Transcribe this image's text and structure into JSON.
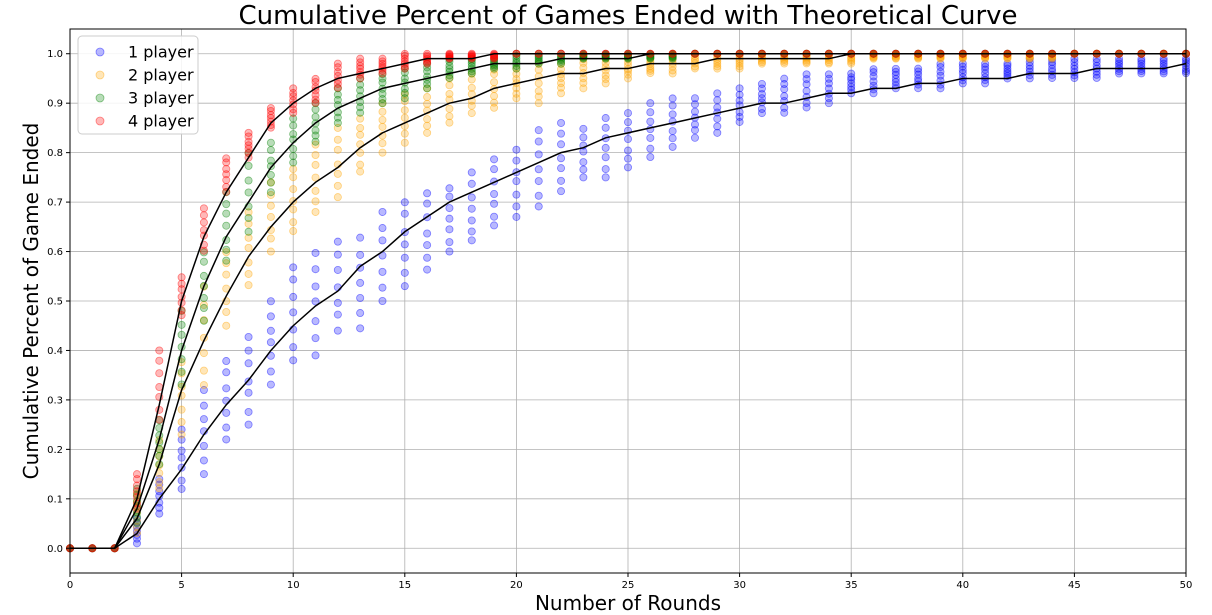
{
  "chart_data": {
    "type": "scatter",
    "title": "Cumulative Percent of Games Ended with Theoretical Curve",
    "xlabel": "Number of Rounds",
    "ylabel": "Cumulative Percent of Game Ended",
    "xlim": [
      0,
      50
    ],
    "ylim": [
      -0.05,
      1.05
    ],
    "xticks": [
      0,
      5,
      10,
      15,
      20,
      25,
      30,
      35,
      40,
      45,
      50
    ],
    "yticks": [
      0.0,
      0.1,
      0.2,
      0.3,
      0.4,
      0.5,
      0.6,
      0.7,
      0.8,
      0.9,
      1.0
    ],
    "grid": true,
    "legend_position": "top-left",
    "series": [
      {
        "name": "1 player",
        "color": "#0000ff",
        "x": [
          0,
          1,
          2,
          3,
          4,
          5,
          6,
          7,
          8,
          9,
          10,
          11,
          12,
          13,
          14,
          15,
          16,
          17,
          18,
          19,
          20,
          21,
          22,
          23,
          24,
          25,
          26,
          27,
          28,
          29,
          30,
          31,
          32,
          33,
          34,
          35,
          36,
          37,
          38,
          39,
          40,
          41,
          42,
          43,
          44,
          45,
          46,
          47,
          48,
          49,
          50
        ],
        "low": [
          0,
          0,
          0,
          0.01,
          0.07,
          0.12,
          0.15,
          0.22,
          0.25,
          0.33,
          0.38,
          0.39,
          0.44,
          0.44,
          0.5,
          0.53,
          0.56,
          0.6,
          0.62,
          0.65,
          0.67,
          0.69,
          0.72,
          0.75,
          0.75,
          0.77,
          0.79,
          0.81,
          0.83,
          0.84,
          0.86,
          0.88,
          0.88,
          0.89,
          0.9,
          0.92,
          0.92,
          0.93,
          0.93,
          0.93,
          0.94,
          0.94,
          0.95,
          0.95,
          0.95,
          0.95,
          0.95,
          0.96,
          0.96,
          0.96,
          0.96
        ],
        "high": [
          0,
          0,
          0,
          0.06,
          0.14,
          0.24,
          0.32,
          0.38,
          0.43,
          0.5,
          0.57,
          0.6,
          0.62,
          0.63,
          0.68,
          0.7,
          0.72,
          0.73,
          0.76,
          0.79,
          0.81,
          0.85,
          0.86,
          0.85,
          0.87,
          0.88,
          0.9,
          0.91,
          0.91,
          0.92,
          0.93,
          0.94,
          0.95,
          0.96,
          0.96,
          0.96,
          0.97,
          0.97,
          0.97,
          0.98,
          0.98,
          0.98,
          0.98,
          0.99,
          0.99,
          0.99,
          0.99,
          0.99,
          0.99,
          0.99,
          0.99
        ]
      },
      {
        "name": "2 player",
        "color": "#ffa500",
        "x": [
          0,
          1,
          2,
          3,
          4,
          5,
          6,
          7,
          8,
          9,
          10,
          11,
          12,
          13,
          14,
          15,
          16,
          17,
          18,
          19,
          20,
          21,
          22,
          23,
          24,
          25,
          26,
          27,
          28,
          29,
          30,
          31,
          32,
          33,
          34,
          35,
          36,
          37,
          38,
          39,
          40,
          41,
          42,
          43,
          44,
          45,
          46,
          47,
          48,
          49,
          50
        ],
        "low": [
          0,
          0,
          0,
          0.03,
          0.12,
          0.23,
          0.33,
          0.45,
          0.53,
          0.6,
          0.64,
          0.68,
          0.71,
          0.76,
          0.8,
          0.82,
          0.84,
          0.86,
          0.88,
          0.89,
          0.91,
          0.9,
          0.92,
          0.93,
          0.94,
          0.95,
          0.96,
          0.96,
          0.97,
          0.97,
          0.97,
          0.98,
          0.98,
          0.98,
          0.98,
          0.98,
          0.99,
          0.99,
          0.99,
          0.99,
          0.99,
          0.99,
          0.99,
          0.99,
          0.99,
          1.0,
          1.0,
          1.0,
          1.0,
          1.0,
          1.0
        ],
        "high": [
          0,
          0,
          0,
          0.11,
          0.22,
          0.38,
          0.53,
          0.6,
          0.68,
          0.74,
          0.77,
          0.82,
          0.85,
          0.87,
          0.9,
          0.92,
          0.93,
          0.95,
          0.96,
          0.97,
          0.97,
          0.98,
          0.98,
          0.99,
          0.99,
          0.99,
          0.99,
          1.0,
          1.0,
          1.0,
          1.0,
          1.0,
          1.0,
          1.0,
          1.0,
          1.0,
          1.0,
          1.0,
          1.0,
          1.0,
          1.0,
          1.0,
          1.0,
          1.0,
          1.0,
          1.0,
          1.0,
          1.0,
          1.0,
          1.0,
          1.0
        ]
      },
      {
        "name": "3 player",
        "color": "#008000",
        "x": [
          0,
          1,
          2,
          3,
          4,
          5,
          6,
          7,
          8,
          9,
          10,
          11,
          12,
          13,
          14,
          15,
          16,
          17,
          18,
          19,
          20,
          21,
          22,
          23,
          24,
          25,
          26,
          27,
          28,
          29,
          30,
          31,
          32,
          33,
          34,
          35,
          36,
          37,
          38,
          39,
          40,
          41,
          42,
          43,
          44,
          45,
          46,
          47,
          48,
          49,
          50
        ],
        "low": [
          0,
          0,
          0,
          0.05,
          0.17,
          0.33,
          0.46,
          0.58,
          0.64,
          0.72,
          0.78,
          0.82,
          0.86,
          0.88,
          0.9,
          0.91,
          0.93,
          0.95,
          0.96,
          0.97,
          0.97,
          0.98,
          0.98,
          0.99,
          0.99,
          0.99,
          0.99,
          0.99,
          1.0,
          1.0,
          1.0,
          1.0,
          1.0,
          1.0,
          1.0,
          1.0,
          1.0,
          1.0,
          1.0,
          1.0,
          1.0,
          1.0,
          1.0,
          1.0,
          1.0,
          1.0,
          1.0,
          1.0,
          1.0,
          1.0,
          1.0
        ],
        "high": [
          0,
          0,
          0,
          0.12,
          0.26,
          0.48,
          0.6,
          0.72,
          0.8,
          0.82,
          0.87,
          0.9,
          0.93,
          0.95,
          0.96,
          0.97,
          0.98,
          0.99,
          0.99,
          0.99,
          1.0,
          1.0,
          1.0,
          1.0,
          1.0,
          1.0,
          1.0,
          1.0,
          1.0,
          1.0,
          1.0,
          1.0,
          1.0,
          1.0,
          1.0,
          1.0,
          1.0,
          1.0,
          1.0,
          1.0,
          1.0,
          1.0,
          1.0,
          1.0,
          1.0,
          1.0,
          1.0,
          1.0,
          1.0,
          1.0,
          1.0
        ]
      },
      {
        "name": "4 player",
        "color": "#ff0000",
        "x": [
          0,
          1,
          2,
          3,
          4,
          5,
          6,
          7,
          8,
          9,
          10,
          11,
          12,
          13,
          14,
          15,
          16,
          17,
          18,
          19,
          20,
          21,
          22,
          23,
          24,
          25,
          26,
          27,
          28,
          29,
          30,
          31,
          32,
          33,
          34,
          35,
          36,
          37,
          38,
          39,
          40,
          41,
          42,
          43,
          44,
          45,
          46,
          47,
          48,
          49,
          50
        ],
        "low": [
          0,
          0,
          0,
          0.08,
          0.26,
          0.47,
          0.6,
          0.72,
          0.79,
          0.85,
          0.88,
          0.9,
          0.93,
          0.95,
          0.96,
          0.97,
          0.98,
          0.99,
          0.99,
          0.99,
          1.0,
          1.0,
          1.0,
          1.0,
          1.0,
          1.0,
          1.0,
          1.0,
          1.0,
          1.0,
          1.0,
          1.0,
          1.0,
          1.0,
          1.0,
          1.0,
          1.0,
          1.0,
          1.0,
          1.0,
          1.0,
          1.0,
          1.0,
          1.0,
          1.0,
          1.0,
          1.0,
          1.0,
          1.0,
          1.0,
          1.0
        ],
        "high": [
          0,
          0,
          0,
          0.15,
          0.4,
          0.55,
          0.69,
          0.79,
          0.84,
          0.89,
          0.93,
          0.95,
          0.98,
          0.99,
          0.99,
          1.0,
          1.0,
          1.0,
          1.0,
          1.0,
          1.0,
          1.0,
          1.0,
          1.0,
          1.0,
          1.0,
          1.0,
          1.0,
          1.0,
          1.0,
          1.0,
          1.0,
          1.0,
          1.0,
          1.0,
          1.0,
          1.0,
          1.0,
          1.0,
          1.0,
          1.0,
          1.0,
          1.0,
          1.0,
          1.0,
          1.0,
          1.0,
          1.0,
          1.0,
          1.0,
          1.0
        ]
      }
    ],
    "theoretical_curves": [
      {
        "color": "#000000",
        "x": [
          0,
          1,
          2,
          3,
          4,
          5,
          6,
          7,
          8,
          9,
          10,
          11,
          12,
          13,
          14,
          15,
          16,
          17,
          18,
          19,
          20,
          21,
          22,
          23,
          24,
          25,
          26,
          27,
          28,
          29,
          30,
          31,
          32,
          33,
          34,
          35,
          36,
          37,
          38,
          39,
          40,
          41,
          42,
          43,
          44,
          45,
          46,
          47,
          48,
          49,
          50
        ],
        "y": [
          0,
          0,
          0,
          0.03,
          0.1,
          0.16,
          0.23,
          0.29,
          0.34,
          0.4,
          0.45,
          0.49,
          0.52,
          0.57,
          0.6,
          0.64,
          0.67,
          0.7,
          0.72,
          0.74,
          0.76,
          0.78,
          0.8,
          0.81,
          0.83,
          0.84,
          0.85,
          0.86,
          0.87,
          0.88,
          0.89,
          0.9,
          0.9,
          0.91,
          0.92,
          0.92,
          0.93,
          0.93,
          0.94,
          0.94,
          0.95,
          0.95,
          0.95,
          0.96,
          0.96,
          0.96,
          0.97,
          0.97,
          0.97,
          0.97,
          0.98
        ]
      },
      {
        "color": "#000000",
        "x": [
          0,
          1,
          2,
          3,
          4,
          5,
          6,
          7,
          8,
          9,
          10,
          11,
          12,
          13,
          14,
          15,
          16,
          17,
          18,
          19,
          20,
          21,
          22,
          23,
          24,
          25,
          26,
          27,
          28,
          29,
          30,
          31,
          32,
          33,
          34,
          35,
          36,
          37,
          38,
          39,
          40,
          41,
          42,
          43,
          44,
          45,
          46,
          47,
          48,
          49,
          50
        ],
        "y": [
          0,
          0,
          0,
          0.06,
          0.17,
          0.32,
          0.42,
          0.51,
          0.59,
          0.65,
          0.7,
          0.74,
          0.77,
          0.81,
          0.84,
          0.86,
          0.88,
          0.9,
          0.91,
          0.93,
          0.94,
          0.95,
          0.96,
          0.96,
          0.97,
          0.97,
          0.98,
          0.98,
          0.98,
          0.99,
          0.99,
          0.99,
          0.99,
          0.99,
          0.99,
          1.0,
          1.0,
          1.0,
          1.0,
          1.0,
          1.0,
          1.0,
          1.0,
          1.0,
          1.0,
          1.0,
          1.0,
          1.0,
          1.0,
          1.0,
          1.0
        ]
      },
      {
        "color": "#000000",
        "x": [
          0,
          1,
          2,
          3,
          4,
          5,
          6,
          7,
          8,
          9,
          10,
          11,
          12,
          13,
          14,
          15,
          16,
          17,
          18,
          19,
          20,
          21,
          22,
          23,
          24,
          25,
          26,
          27,
          28,
          29,
          30,
          31,
          32,
          33,
          34,
          35,
          36,
          37,
          38,
          39,
          40,
          41,
          42,
          43,
          44,
          45,
          46,
          47,
          48,
          49,
          50
        ],
        "y": [
          0,
          0,
          0,
          0.08,
          0.22,
          0.4,
          0.53,
          0.63,
          0.7,
          0.77,
          0.82,
          0.86,
          0.89,
          0.91,
          0.93,
          0.94,
          0.95,
          0.96,
          0.97,
          0.98,
          0.98,
          0.98,
          0.99,
          0.99,
          0.99,
          0.99,
          1.0,
          1.0,
          1.0,
          1.0,
          1.0,
          1.0,
          1.0,
          1.0,
          1.0,
          1.0,
          1.0,
          1.0,
          1.0,
          1.0,
          1.0,
          1.0,
          1.0,
          1.0,
          1.0,
          1.0,
          1.0,
          1.0,
          1.0,
          1.0,
          1.0
        ]
      },
      {
        "color": "#000000",
        "x": [
          0,
          1,
          2,
          3,
          4,
          5,
          6,
          7,
          8,
          9,
          10,
          11,
          12,
          13,
          14,
          15,
          16,
          17,
          18,
          19,
          20,
          21,
          22,
          23,
          24,
          25,
          26,
          27,
          28,
          29,
          30,
          31,
          32,
          33,
          34,
          35,
          36,
          37,
          38,
          39,
          40,
          41,
          42,
          43,
          44,
          45,
          46,
          47,
          48,
          49,
          50
        ],
        "y": [
          0,
          0,
          0,
          0.1,
          0.29,
          0.5,
          0.63,
          0.72,
          0.79,
          0.86,
          0.9,
          0.93,
          0.95,
          0.96,
          0.97,
          0.98,
          0.99,
          0.99,
          0.99,
          1.0,
          1.0,
          1.0,
          1.0,
          1.0,
          1.0,
          1.0,
          1.0,
          1.0,
          1.0,
          1.0,
          1.0,
          1.0,
          1.0,
          1.0,
          1.0,
          1.0,
          1.0,
          1.0,
          1.0,
          1.0,
          1.0,
          1.0,
          1.0,
          1.0,
          1.0,
          1.0,
          1.0,
          1.0,
          1.0,
          1.0,
          1.0
        ]
      }
    ]
  }
}
